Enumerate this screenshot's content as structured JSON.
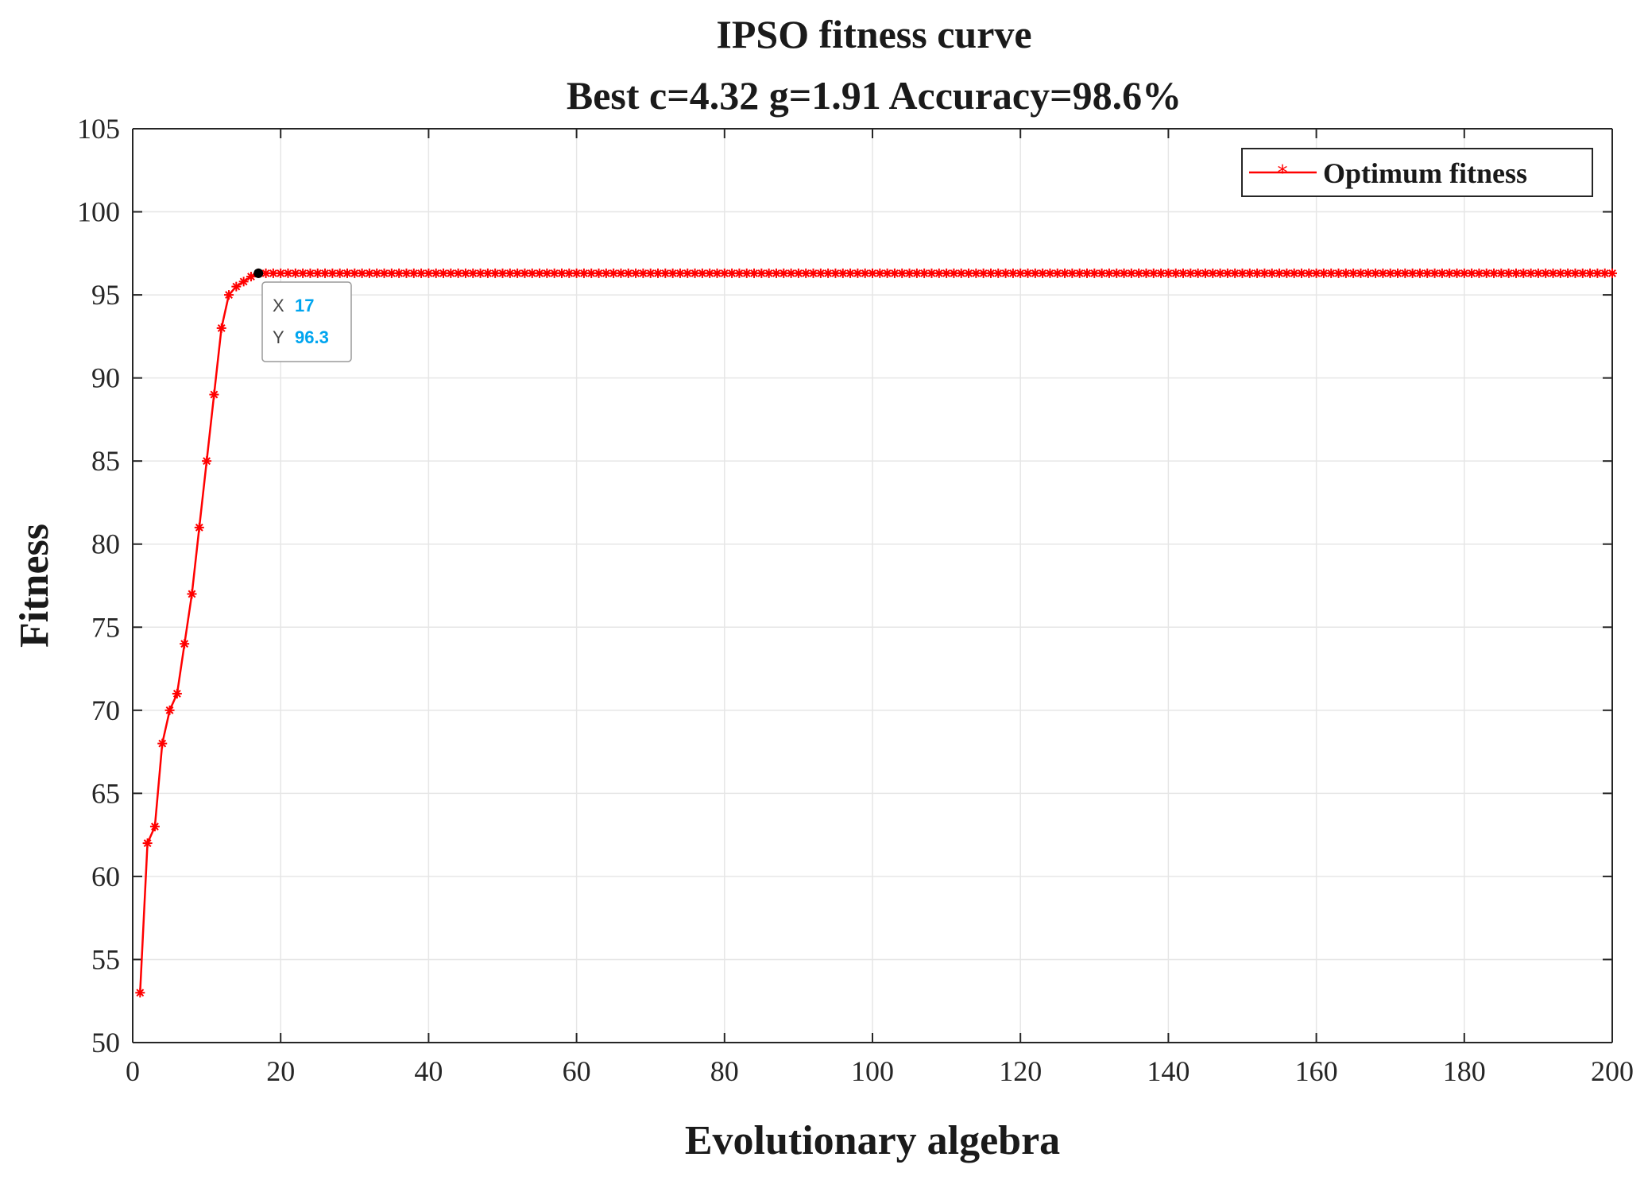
{
  "chart_data": {
    "type": "line",
    "title": "IPSO fitness curve",
    "subtitle": "Best c=4.32 g=1.91 Accuracy=98.6%",
    "xlabel": "Evolutionary algebra",
    "ylabel": "Fitness",
    "xlim": [
      0,
      200
    ],
    "ylim": [
      50,
      105
    ],
    "xticks": [
      0,
      20,
      40,
      60,
      80,
      100,
      120,
      140,
      160,
      180,
      200
    ],
    "yticks": [
      50,
      55,
      60,
      65,
      70,
      75,
      80,
      85,
      90,
      95,
      100,
      105
    ],
    "grid": true,
    "legend_position": "top-right",
    "series": [
      {
        "name": "Optimum fitness",
        "color": "#ff0000",
        "marker": "asterisk",
        "early_x": [
          1,
          2,
          3,
          4,
          5,
          6,
          7,
          8,
          9,
          10,
          11,
          12,
          13,
          14,
          15,
          16,
          17
        ],
        "early_y": [
          53,
          62,
          63,
          68,
          70,
          71,
          74,
          77,
          81,
          85,
          89,
          93,
          95,
          95.5,
          95.8,
          96.1,
          96.3
        ],
        "plateau_from": 17,
        "plateau_to": 200,
        "plateau_value": 96.3
      }
    ],
    "datatip": {
      "x_key": "X",
      "x_value": "17",
      "y_key": "Y",
      "y_value": "96.3",
      "point_x": 17,
      "point_y": 96.3
    }
  }
}
